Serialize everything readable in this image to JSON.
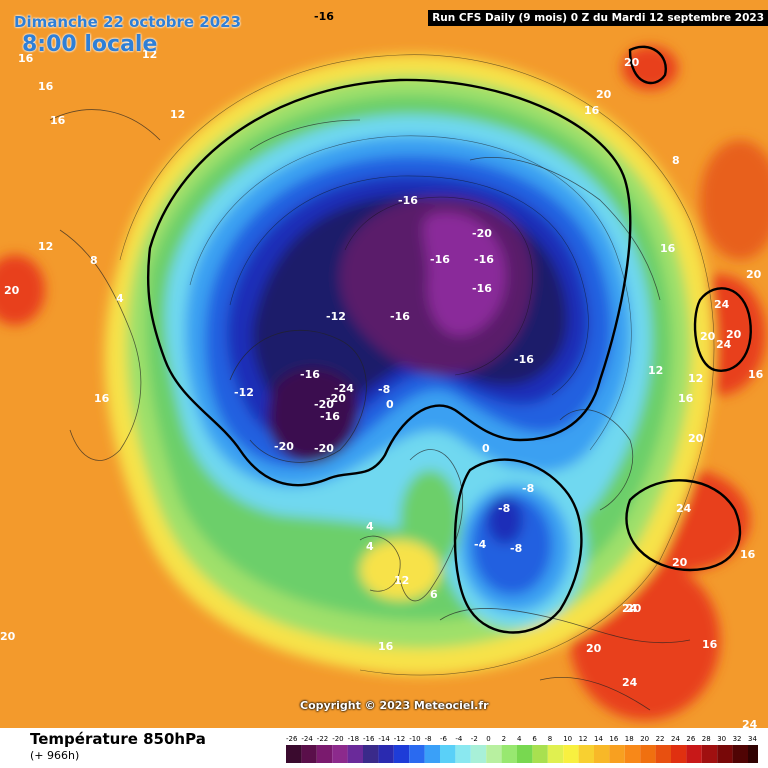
{
  "header": {
    "date": "Dimanche 22 octobre 2023",
    "time": "8:00 locale",
    "run": "Run CFS Daily (9 mois) 0 Z du Mardi 12 septembre 2023"
  },
  "copyright": "Copyright © 2023 Meteociel.fr",
  "footer": {
    "title": "Température 850hPa",
    "subtitle": "(+ 966h)"
  },
  "legend": {
    "ticks": [
      "-26",
      "-24",
      "-22",
      "-20",
      "-18",
      "-16",
      "-14",
      "-12",
      "-10",
      "-8",
      "-6",
      "-4",
      "-2",
      "0",
      "2",
      "4",
      "6",
      "8",
      "10",
      "12",
      "14",
      "16",
      "18",
      "20",
      "22",
      "24",
      "26",
      "28",
      "30",
      "32",
      "34"
    ],
    "colors": [
      "#3a0a2e",
      "#5a0f4a",
      "#7a1a6e",
      "#8c2a8c",
      "#6a2a9a",
      "#3a2a8a",
      "#2a2ab0",
      "#1e3cd8",
      "#2a6af0",
      "#3aa0f8",
      "#5ad0f8",
      "#8ae8f0",
      "#a8f0d8",
      "#b8f0a0",
      "#98e870",
      "#78d850",
      "#a8e050",
      "#e0f050",
      "#f8f040",
      "#f8d030",
      "#f8b828",
      "#f8a020",
      "#f88818",
      "#f07010",
      "#e85010",
      "#e03010",
      "#c81818",
      "#a01010",
      "#780808",
      "#500404",
      "#300202"
    ]
  },
  "map": {
    "colors": {
      "warm_bg": "#f39a2c",
      "hot": "#e8401a",
      "yellow": "#f7e24a",
      "light_green": "#9fe06a",
      "green": "#6ccf6a",
      "cyan": "#6fd8f0",
      "blue_light": "#3aa0f2",
      "blue": "#2060e0",
      "blue_dark": "#1a2fb8",
      "navy": "#1c1c6a",
      "purple": "#5a1a6a",
      "magenta": "#8a2a9a"
    },
    "isotherm_labels": [
      "-16",
      "16",
      "12",
      "16",
      "16",
      "12",
      "12",
      "8",
      "4",
      "16",
      "20",
      "-12",
      "-12",
      "-16",
      "-24",
      "-20",
      "-16",
      "-20",
      "-20",
      "-20",
      "-16",
      "-16",
      "-16",
      "-16",
      "-20",
      "-16",
      "-16",
      "-8",
      "0",
      "0",
      "-8",
      "-8",
      "-8",
      "4",
      "-4",
      "4",
      "12",
      "6",
      "16",
      "24",
      "20",
      "20",
      "20",
      "24",
      "16",
      "12",
      "12",
      "16",
      "20",
      "20",
      "24",
      "20",
      "16",
      "24",
      "20",
      "24",
      "16",
      "20",
      "20",
      "16",
      "8",
      "16",
      "20",
      "24"
    ]
  }
}
